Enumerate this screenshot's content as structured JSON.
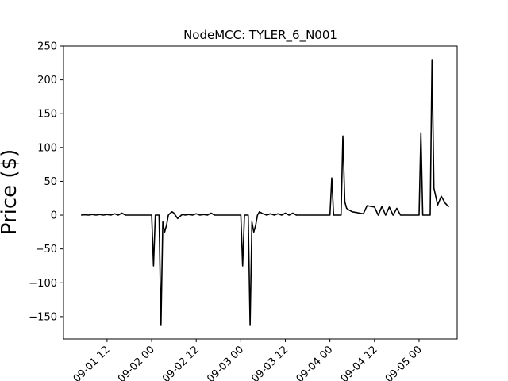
{
  "chart_data": {
    "type": "line",
    "title": "NodeMCC: TYLER_6_N001",
    "xlabel": "",
    "ylabel": "Price ($)",
    "ylim": [
      -183,
      250
    ],
    "xlim": [
      "2018-09-01T00:16",
      "2018-09-05T10:16"
    ],
    "yticks": [
      -150,
      -100,
      -50,
      0,
      50,
      100,
      150,
      200,
      250
    ],
    "xtick_labels": [
      "09-01 12",
      "09-02 00",
      "09-02 12",
      "09-03 00",
      "09-03 12",
      "09-04 00",
      "09-04 12",
      "09-05 00"
    ],
    "xtick_values": [
      "2018-09-01T12:00",
      "2018-09-02T00:00",
      "2018-09-02T12:00",
      "2018-09-03T00:00",
      "2018-09-03T12:00",
      "2018-09-04T00:00",
      "2018-09-04T12:00",
      "2018-09-05T00:00"
    ],
    "grid": false,
    "line_color": "#000000",
    "series": [
      {
        "x": [
          "2018-09-01T05:00",
          "2018-09-01T06:00",
          "2018-09-01T07:00",
          "2018-09-01T08:00",
          "2018-09-01T09:00",
          "2018-09-01T10:00",
          "2018-09-01T11:00",
          "2018-09-01T12:00",
          "2018-09-01T13:00",
          "2018-09-01T14:00",
          "2018-09-01T15:00",
          "2018-09-01T16:00",
          "2018-09-01T17:00",
          "2018-09-01T18:00",
          "2018-09-02T00:00",
          "2018-09-02T00:30",
          "2018-09-02T01:00",
          "2018-09-02T02:00",
          "2018-09-02T02:30",
          "2018-09-02T03:00",
          "2018-09-02T03:30",
          "2018-09-02T04:00",
          "2018-09-02T04:30",
          "2018-09-02T05:00",
          "2018-09-02T05:30",
          "2018-09-02T06:00",
          "2018-09-02T07:00",
          "2018-09-02T08:00",
          "2018-09-02T08:30",
          "2018-09-02T09:00",
          "2018-09-02T10:00",
          "2018-09-02T11:00",
          "2018-09-02T12:00",
          "2018-09-02T13:00",
          "2018-09-02T14:00",
          "2018-09-02T15:00",
          "2018-09-02T16:00",
          "2018-09-02T17:00",
          "2018-09-03T00:00",
          "2018-09-03T00:30",
          "2018-09-03T01:00",
          "2018-09-03T02:00",
          "2018-09-03T02:30",
          "2018-09-03T03:00",
          "2018-09-03T03:30",
          "2018-09-03T04:00",
          "2018-09-03T04:30",
          "2018-09-03T05:00",
          "2018-09-03T06:00",
          "2018-09-03T07:00",
          "2018-09-03T08:00",
          "2018-09-03T09:00",
          "2018-09-03T10:00",
          "2018-09-03T11:00",
          "2018-09-03T12:00",
          "2018-09-03T13:00",
          "2018-09-03T14:00",
          "2018-09-03T15:00",
          "2018-09-04T00:00",
          "2018-09-04T00:30",
          "2018-09-04T01:00",
          "2018-09-04T02:00",
          "2018-09-04T03:00",
          "2018-09-04T03:30",
          "2018-09-04T04:00",
          "2018-09-04T04:30",
          "2018-09-04T05:00",
          "2018-09-04T06:00",
          "2018-09-04T07:00",
          "2018-09-04T08:00",
          "2018-09-04T09:00",
          "2018-09-04T10:00",
          "2018-09-04T11:00",
          "2018-09-04T12:00",
          "2018-09-04T13:00",
          "2018-09-04T14:00",
          "2018-09-04T15:00",
          "2018-09-04T16:00",
          "2018-09-04T17:00",
          "2018-09-04T18:00",
          "2018-09-04T19:00",
          "2018-09-04T20:00",
          "2018-09-05T00:00",
          "2018-09-05T00:30",
          "2018-09-05T01:00",
          "2018-09-05T02:00",
          "2018-09-05T03:00",
          "2018-09-05T03:30",
          "2018-09-05T04:00",
          "2018-09-05T05:00",
          "2018-09-05T06:00",
          "2018-09-05T07:00",
          "2018-09-05T08:00"
        ],
        "y": [
          0,
          0.5,
          0,
          1,
          0,
          1,
          0,
          1,
          0,
          2,
          0,
          3,
          0,
          0,
          0,
          -75,
          0,
          0,
          -163,
          -10,
          -25,
          -15,
          0,
          3,
          5,
          3,
          -5,
          0,
          1,
          0,
          1,
          0,
          2,
          0,
          1,
          0,
          3,
          0,
          0,
          -75,
          0,
          0,
          -163,
          -10,
          -25,
          -15,
          0,
          5,
          2,
          0,
          2,
          0,
          2,
          0,
          3,
          0,
          3,
          0,
          0,
          55,
          0,
          0,
          0,
          117,
          20,
          10,
          8,
          5,
          4,
          3,
          2,
          14,
          13,
          12,
          0,
          13,
          0,
          12,
          0,
          10,
          0,
          0,
          0,
          122,
          0,
          0,
          0,
          230,
          40,
          15,
          28,
          18,
          12
        ]
      }
    ]
  }
}
